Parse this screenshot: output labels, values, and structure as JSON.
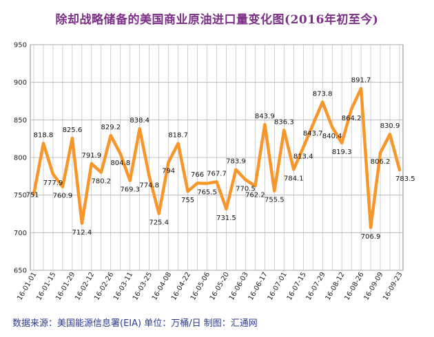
{
  "title": "除却战略储备的美国商业原油进口量变化图(2016年初至今)",
  "footer": "数据来源：美国能源信息署(EIA)   单位：万桶/日   制图：汇通网",
  "colors": {
    "line": "#f7962a",
    "grid": "#b0b0b0",
    "title": "#7b2f86",
    "footer": "#2a3a8c"
  },
  "chart_data": {
    "type": "line",
    "title": "除却战略储备的美国商业原油进口量变化图(2016年初至今)",
    "xlabel": "",
    "ylabel": "",
    "ylim": [
      650,
      950
    ],
    "yticks": [
      650,
      700,
      750,
      800,
      850,
      900,
      950
    ],
    "grid": true,
    "x_tick_labels": [
      "16-01-01",
      "16-01-15",
      "16-01-29",
      "16-02-12",
      "16-02-26",
      "16-03-11",
      "16-03-25",
      "16-04-08",
      "16-04-22",
      "16-05-06",
      "16-05-20",
      "16-06-03",
      "16-06-17",
      "16-07-01",
      "16-07-15",
      "16-07-29",
      "16-08-12",
      "16-08-26",
      "16-09-09",
      "16-09-23"
    ],
    "series": [
      {
        "values": [
          751,
          818.8,
          777.9,
          760.9,
          825.6,
          712.4,
          791.9,
          780.2,
          829.2,
          804.8,
          769.3,
          838.4,
          774.8,
          725.4,
          794,
          818.7,
          755,
          766,
          765.5,
          767.7,
          731.5,
          783.9,
          770.5,
          762.2,
          843.9,
          755.5,
          836.3,
          784.1,
          813.4,
          843.7,
          873.8,
          840.4,
          819.3,
          864.2,
          891.7,
          706.9,
          806.2,
          830.9,
          783.5
        ]
      }
    ]
  }
}
